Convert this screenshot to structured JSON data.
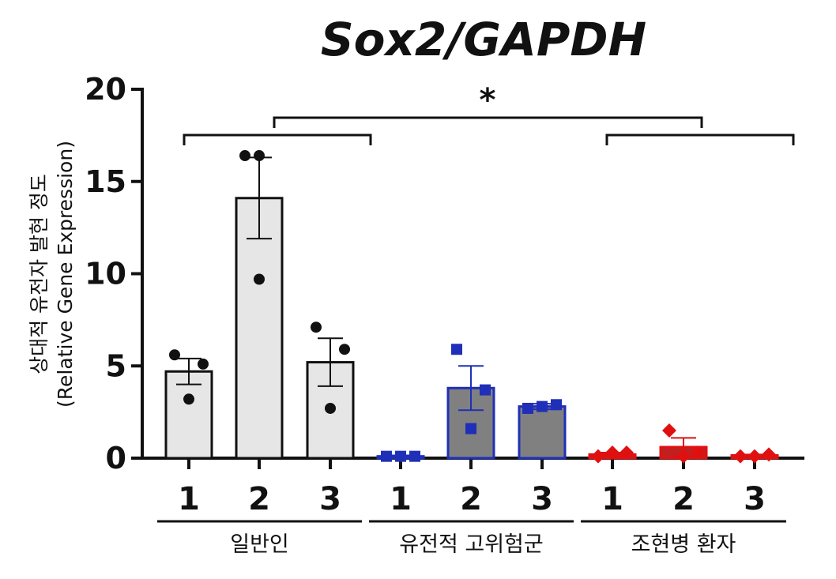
{
  "chart_data": {
    "type": "bar",
    "title": "Sox2/GAPDH",
    "ylabel_line1": "상대적 유전자 발현 정도",
    "ylabel_line2": "(Relative Gene Expression)",
    "ylim": [
      0,
      20
    ],
    "yticks": [
      "0",
      "5",
      "10",
      "15",
      "20"
    ],
    "grid": false,
    "groups": [
      {
        "name": "일반인",
        "color": "#111111",
        "fill": "#e6e6e6",
        "marker": "circle",
        "categories": [
          "1",
          "2",
          "3"
        ],
        "values": [
          4.7,
          14.1,
          5.2
        ],
        "errors": [
          0.7,
          2.2,
          1.3
        ],
        "points": [
          [
            5.6,
            5.1,
            3.2
          ],
          [
            16.4,
            16.4,
            9.7
          ],
          [
            7.1,
            5.9,
            2.7
          ]
        ]
      },
      {
        "name": "유전적 고위험군",
        "color": "#1f2fb8",
        "fill": "#808080",
        "marker": "square",
        "categories": [
          "1",
          "2",
          "3"
        ],
        "values": [
          0.1,
          3.8,
          2.8
        ],
        "errors": [
          0.05,
          1.2,
          0.15
        ],
        "points": [
          [
            0.1,
            0.1,
            0.1
          ],
          [
            5.9,
            3.7,
            1.6
          ],
          [
            2.7,
            2.9,
            2.8
          ]
        ]
      },
      {
        "name": "조현병 환자",
        "color": "#e01010",
        "fill": "#c02020",
        "marker": "diamond",
        "categories": [
          "1",
          "2",
          "3"
        ],
        "values": [
          0.2,
          0.6,
          0.15
        ],
        "errors": [
          0.1,
          0.5,
          0.05
        ],
        "points": [
          [
            0.1,
            0.3,
            0.3
          ],
          [
            1.5,
            0.3,
            0.1
          ],
          [
            0.1,
            0.2,
            0.1
          ]
        ]
      }
    ],
    "significance": {
      "label": "*",
      "between": [
        "일반인",
        "조현병 환자"
      ]
    }
  }
}
